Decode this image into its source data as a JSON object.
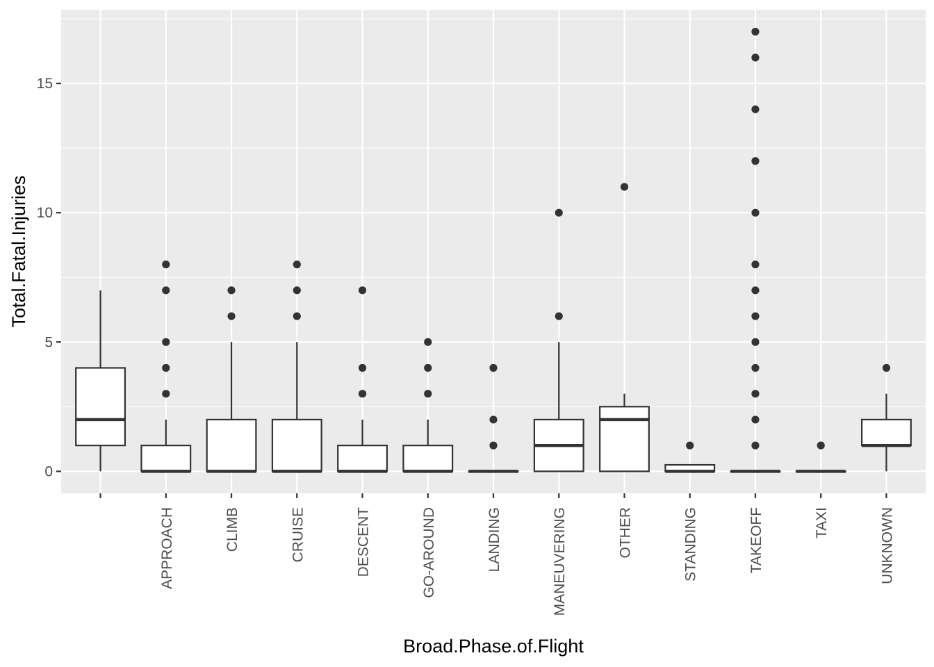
{
  "chart_data": {
    "type": "boxplot",
    "xlabel": "Broad.Phase.of.Flight",
    "ylabel": "Total.Fatal.Injuries",
    "ylim": [
      -0.85,
      17.85
    ],
    "yticks": [
      0,
      5,
      10,
      15
    ],
    "grid": true,
    "categories": [
      "",
      "APPROACH",
      "CLIMB",
      "CRUISE",
      "DESCENT",
      "GO-AROUND",
      "LANDING",
      "MANEUVERING",
      "OTHER",
      "STANDING",
      "TAKEOFF",
      "TAXI",
      "UNKNOWN"
    ],
    "boxes": [
      {
        "category": "",
        "whisker_low": 0,
        "q1": 1,
        "median": 2,
        "q3": 4,
        "whisker_high": 7,
        "outliers": []
      },
      {
        "category": "APPROACH",
        "whisker_low": 0,
        "q1": 0,
        "median": 0,
        "q3": 1,
        "whisker_high": 2,
        "outliers": [
          3,
          4,
          5,
          7,
          8
        ]
      },
      {
        "category": "CLIMB",
        "whisker_low": 0,
        "q1": 0,
        "median": 0,
        "q3": 2,
        "whisker_high": 5,
        "outliers": [
          6,
          7
        ]
      },
      {
        "category": "CRUISE",
        "whisker_low": 0,
        "q1": 0,
        "median": 0,
        "q3": 2,
        "whisker_high": 5,
        "outliers": [
          6,
          7,
          8
        ]
      },
      {
        "category": "DESCENT",
        "whisker_low": 0,
        "q1": 0,
        "median": 0,
        "q3": 1,
        "whisker_high": 2,
        "outliers": [
          3,
          4,
          7
        ]
      },
      {
        "category": "GO-AROUND",
        "whisker_low": 0,
        "q1": 0,
        "median": 0,
        "q3": 1,
        "whisker_high": 2,
        "outliers": [
          3,
          4,
          5
        ]
      },
      {
        "category": "LANDING",
        "whisker_low": 0,
        "q1": 0,
        "median": 0,
        "q3": 0,
        "whisker_high": 0,
        "outliers": [
          1,
          2,
          4
        ]
      },
      {
        "category": "MANEUVERING",
        "whisker_low": 0,
        "q1": 0,
        "median": 1,
        "q3": 2,
        "whisker_high": 5,
        "outliers": [
          6,
          10
        ]
      },
      {
        "category": "OTHER",
        "whisker_low": 0,
        "q1": 0,
        "median": 2,
        "q3": 2.5,
        "whisker_high": 3,
        "outliers": [
          11
        ]
      },
      {
        "category": "STANDING",
        "whisker_low": 0,
        "q1": 0,
        "median": 0,
        "q3": 0.25,
        "whisker_high": 0.25,
        "outliers": [
          1
        ]
      },
      {
        "category": "TAKEOFF",
        "whisker_low": 0,
        "q1": 0,
        "median": 0,
        "q3": 0,
        "whisker_high": 0,
        "outliers": [
          1,
          2,
          3,
          4,
          5,
          6,
          7,
          8,
          10,
          12,
          14,
          16,
          17
        ]
      },
      {
        "category": "TAXI",
        "whisker_low": 0,
        "q1": 0,
        "median": 0,
        "q3": 0,
        "whisker_high": 0,
        "outliers": [
          1
        ]
      },
      {
        "category": "UNKNOWN",
        "whisker_low": 0,
        "q1": 1,
        "median": 1,
        "q3": 2,
        "whisker_high": 3,
        "outliers": [
          4
        ]
      }
    ],
    "colors": {
      "panel": "#ebebeb",
      "grid": "#ffffff",
      "box_fill": "#ffffff",
      "box_stroke": "#333333",
      "point": "#333333",
      "tick": "#333333"
    }
  }
}
